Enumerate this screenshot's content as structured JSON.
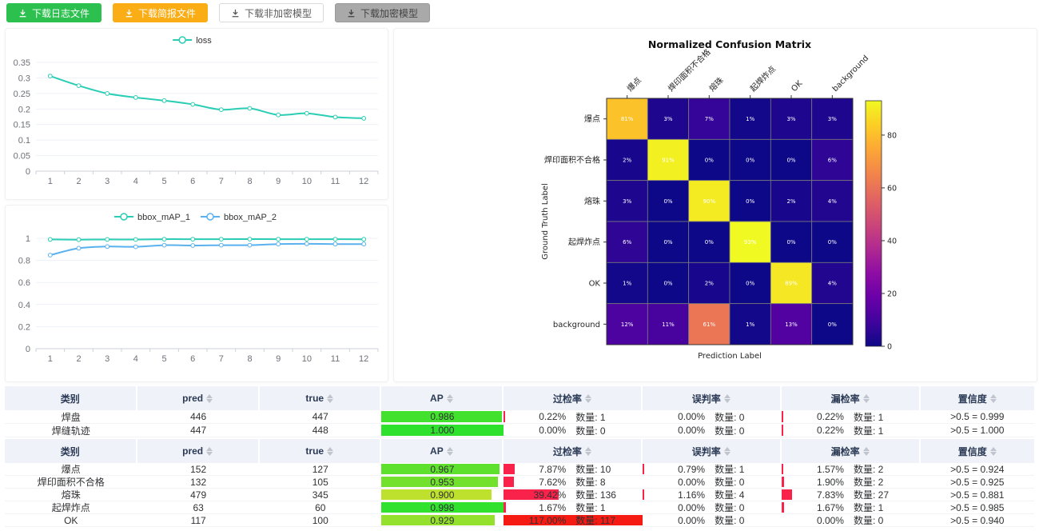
{
  "toolbar": {
    "buttons": [
      {
        "label": "下载日志文件",
        "icon": "download-icon",
        "bg": "#2cc14e",
        "color": "#ffffff",
        "border": "#2cc14e"
      },
      {
        "label": "下载简报文件",
        "icon": "download-icon",
        "bg": "#faad14",
        "color": "#ffffff",
        "border": "#faad14"
      },
      {
        "label": "下载非加密模型",
        "icon": "download-icon",
        "bg": "#ffffff",
        "color": "#595959",
        "border": "#d9d9d9"
      },
      {
        "label": "下载加密模型",
        "icon": "download-icon",
        "bg": "#a9a9a9",
        "color": "#434343",
        "border": "#999999"
      }
    ]
  },
  "colors": {
    "accent_teal": "#2bcdb4",
    "accent_blue": "#5ab1ef",
    "rate_bar_red": "#f8224a",
    "rate_bar_red_full": "#f51b12",
    "table_header_bg": "#eff2f9",
    "grid_line": "#edf1f7",
    "axis_line": "#ccd1dc",
    "axis_text": "#6e7079"
  },
  "chart_data": [
    {
      "id": "loss",
      "type": "line",
      "title": "",
      "x": [
        1,
        2,
        3,
        4,
        5,
        6,
        7,
        8,
        9,
        10,
        11,
        12
      ],
      "series": [
        {
          "name": "loss",
          "color": "#2bcdb4",
          "values": [
            0.306,
            0.275,
            0.25,
            0.237,
            0.227,
            0.215,
            0.198,
            0.202,
            0.181,
            0.186,
            0.174,
            0.17
          ]
        }
      ],
      "ylim": [
        0,
        0.35
      ],
      "ytick_step": 0.05,
      "grid": true,
      "legend_position": "top"
    },
    {
      "id": "map",
      "type": "line",
      "title": "",
      "x": [
        1,
        2,
        3,
        4,
        5,
        6,
        7,
        8,
        9,
        10,
        11,
        12
      ],
      "series": [
        {
          "name": "bbox_mAP_1",
          "color": "#2bcdb4",
          "values": [
            0.99,
            0.988,
            0.99,
            0.989,
            0.992,
            0.992,
            0.992,
            0.993,
            0.992,
            0.992,
            0.992,
            0.991
          ]
        },
        {
          "name": "bbox_mAP_2",
          "color": "#5ab1ef",
          "values": [
            0.848,
            0.91,
            0.925,
            0.923,
            0.938,
            0.935,
            0.938,
            0.938,
            0.948,
            0.95,
            0.948,
            0.948
          ]
        }
      ],
      "ylim": [
        0,
        1
      ],
      "ytick_step": 0.2,
      "grid": true,
      "legend_position": "top"
    },
    {
      "id": "confusion",
      "type": "heatmap",
      "title": "Normalized Confusion Matrix",
      "xlabel": "Prediction Label",
      "ylabel": "Ground Truth Label",
      "labels": [
        "爆点",
        "焊印面积不合格",
        "熔珠",
        "起焊炸点",
        "OK",
        "background"
      ],
      "matrix_percent": [
        [
          81,
          3,
          7,
          1,
          3,
          3
        ],
        [
          2,
          91,
          0,
          0,
          0,
          6
        ],
        [
          3,
          0,
          90,
          0,
          2,
          4
        ],
        [
          6,
          0,
          0,
          93,
          0,
          0
        ],
        [
          1,
          0,
          2,
          0,
          89,
          4
        ],
        [
          12,
          11,
          61,
          1,
          13,
          0
        ]
      ],
      "vmax": 93,
      "colormap": "plasma",
      "colorbar_ticks": [
        0,
        20,
        40,
        60,
        80
      ],
      "legend_position": "right-colorbar"
    }
  ],
  "tables": [
    {
      "headers": [
        "类别",
        "pred",
        "true",
        "AP",
        "过检率",
        "误判率",
        "漏检率",
        "置信度"
      ],
      "sortable": [
        false,
        true,
        true,
        true,
        true,
        true,
        true,
        true
      ],
      "count_prefix": "数量:",
      "rows": [
        {
          "category": "焊盘",
          "pred": 446,
          "true": 447,
          "ap": 0.986,
          "rates": [
            {
              "pct": 0.22,
              "count": 1
            },
            {
              "pct": 0.0,
              "count": 0
            },
            {
              "pct": 0.22,
              "count": 1
            }
          ],
          "confidence": ">0.5 = 0.999"
        },
        {
          "category": "焊缝轨迹",
          "pred": 447,
          "true": 448,
          "ap": 1.0,
          "rates": [
            {
              "pct": 0.0,
              "count": 0
            },
            {
              "pct": 0.0,
              "count": 0
            },
            {
              "pct": 0.22,
              "count": 1
            }
          ],
          "confidence": ">0.5 = 1.000"
        }
      ]
    },
    {
      "headers": [
        "类别",
        "pred",
        "true",
        "AP",
        "过检率",
        "误判率",
        "漏检率",
        "置信度"
      ],
      "sortable": [
        false,
        true,
        true,
        true,
        true,
        true,
        true,
        true
      ],
      "count_prefix": "数量:",
      "rows": [
        {
          "category": "爆点",
          "pred": 152,
          "true": 127,
          "ap": 0.967,
          "rates": [
            {
              "pct": 7.87,
              "count": 10
            },
            {
              "pct": 0.79,
              "count": 1
            },
            {
              "pct": 1.57,
              "count": 2
            }
          ],
          "confidence": ">0.5 = 0.924"
        },
        {
          "category": "焊印面积不合格",
          "pred": 132,
          "true": 105,
          "ap": 0.953,
          "rates": [
            {
              "pct": 7.62,
              "count": 8
            },
            {
              "pct": 0.0,
              "count": 0
            },
            {
              "pct": 1.9,
              "count": 2
            }
          ],
          "confidence": ">0.5 = 0.925"
        },
        {
          "category": "熔珠",
          "pred": 479,
          "true": 345,
          "ap": 0.9,
          "rates": [
            {
              "pct": 39.42,
              "count": 136
            },
            {
              "pct": 1.16,
              "count": 4
            },
            {
              "pct": 7.83,
              "count": 27
            }
          ],
          "confidence": ">0.5 = 0.881"
        },
        {
          "category": "起焊炸点",
          "pred": 63,
          "true": 60,
          "ap": 0.998,
          "rates": [
            {
              "pct": 1.67,
              "count": 1
            },
            {
              "pct": 0.0,
              "count": 0
            },
            {
              "pct": 1.67,
              "count": 1
            }
          ],
          "confidence": ">0.5 = 0.985"
        },
        {
          "category": "OK",
          "pred": 117,
          "true": 100,
          "ap": 0.929,
          "rates": [
            {
              "pct": 117.0,
              "count": 117
            },
            {
              "pct": 0.0,
              "count": 0
            },
            {
              "pct": 0.0,
              "count": 0
            }
          ],
          "confidence": ">0.5 = 0.940"
        }
      ]
    }
  ]
}
